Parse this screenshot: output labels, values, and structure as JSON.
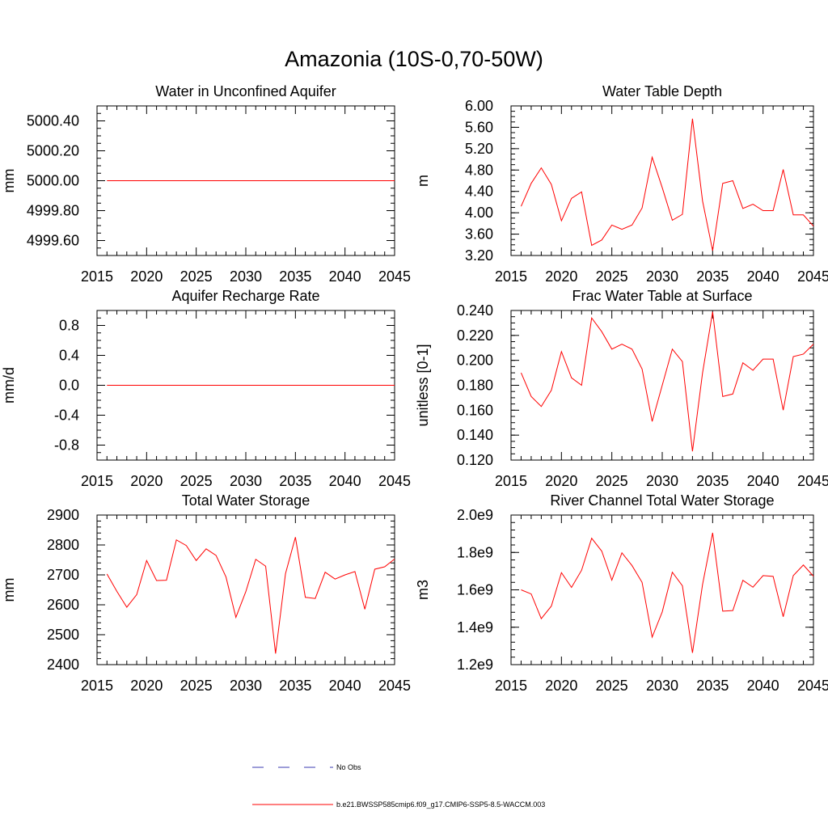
{
  "figure": {
    "title": "Amazonia (10S-0,70-50W)"
  },
  "legend": {
    "entries": [
      {
        "label": "No Obs",
        "color": "#3b3bb0",
        "style": "dashed"
      },
      {
        "label": "b.e21.BWSSP585cmip6.f09_g17.CMIP6-SSP5-8.5-WACCM.003",
        "color": "#ff0000",
        "style": "solid"
      }
    ]
  },
  "chart_data": [
    {
      "type": "line",
      "title": "Water in Unconfined Aquifer",
      "ylabel": "mm",
      "xlim": [
        2015,
        2045
      ],
      "ylim": [
        4999.5,
        5000.5
      ],
      "x_ticks": [
        "2015",
        "2020",
        "2025",
        "2030",
        "2035",
        "2040",
        "2045"
      ],
      "y_ticks": [
        {
          "v": 4999.6,
          "label": "4999.60"
        },
        {
          "v": 4999.8,
          "label": "4999.80"
        },
        {
          "v": 5000.0,
          "label": "5000.00"
        },
        {
          "v": 5000.2,
          "label": "5000.20"
        },
        {
          "v": 5000.4,
          "label": "5000.40"
        }
      ],
      "y_minor_step": 0.05,
      "series": [
        {
          "color": "#ff0000",
          "x": [
            2016,
            2017,
            2018,
            2019,
            2020,
            2021,
            2022,
            2023,
            2024,
            2025,
            2026,
            2027,
            2028,
            2029,
            2030,
            2031,
            2032,
            2033,
            2034,
            2035,
            2036,
            2037,
            2038,
            2039,
            2040,
            2041,
            2042,
            2043,
            2044,
            2045
          ],
          "y": [
            5000,
            5000,
            5000,
            5000,
            5000,
            5000,
            5000,
            5000,
            5000,
            5000,
            5000,
            5000,
            5000,
            5000,
            5000,
            5000,
            5000,
            5000,
            5000,
            5000,
            5000,
            5000,
            5000,
            5000,
            5000,
            5000,
            5000,
            5000,
            5000,
            5000
          ]
        }
      ]
    },
    {
      "type": "line",
      "title": "Water Table Depth",
      "ylabel": "m",
      "xlim": [
        2015,
        2045
      ],
      "ylim": [
        3.2,
        6.0
      ],
      "x_ticks": [
        "2015",
        "2020",
        "2025",
        "2030",
        "2035",
        "2040",
        "2045"
      ],
      "y_ticks": [
        {
          "v": 3.2,
          "label": "3.20"
        },
        {
          "v": 3.6,
          "label": "3.60"
        },
        {
          "v": 4.0,
          "label": "4.00"
        },
        {
          "v": 4.4,
          "label": "4.40"
        },
        {
          "v": 4.8,
          "label": "4.80"
        },
        {
          "v": 5.2,
          "label": "5.20"
        },
        {
          "v": 5.6,
          "label": "5.60"
        },
        {
          "v": 6.0,
          "label": "6.00"
        }
      ],
      "y_minor_step": 0.1,
      "series": [
        {
          "color": "#ff0000",
          "x": [
            2016,
            2017,
            2018,
            2019,
            2020,
            2021,
            2022,
            2023,
            2024,
            2025,
            2026,
            2027,
            2028,
            2029,
            2030,
            2031,
            2032,
            2033,
            2034,
            2035,
            2036,
            2037,
            2038,
            2039,
            2040,
            2041,
            2042,
            2043,
            2044,
            2045
          ],
          "y": [
            4.12,
            4.55,
            4.84,
            4.53,
            3.85,
            4.27,
            4.39,
            3.39,
            3.49,
            3.77,
            3.69,
            3.77,
            4.09,
            5.04,
            4.47,
            3.86,
            3.97,
            5.76,
            4.22,
            3.29,
            4.55,
            4.6,
            4.08,
            4.16,
            4.04,
            4.04,
            4.81,
            3.96,
            3.96,
            3.75
          ]
        }
      ]
    },
    {
      "type": "line",
      "title": "Aquifer Recharge Rate",
      "ylabel": "mm/d",
      "xlim": [
        2015,
        2045
      ],
      "ylim": [
        -1.0,
        1.0
      ],
      "x_ticks": [
        "2015",
        "2020",
        "2025",
        "2030",
        "2035",
        "2040",
        "2045"
      ],
      "y_ticks": [
        {
          "v": -0.8,
          "label": "-0.8"
        },
        {
          "v": -0.4,
          "label": "-0.4"
        },
        {
          "v": 0.0,
          "label": "0.0"
        },
        {
          "v": 0.4,
          "label": "0.4"
        },
        {
          "v": 0.8,
          "label": "0.8"
        }
      ],
      "y_minor_step": 0.1,
      "series": [
        {
          "color": "#ff0000",
          "x": [
            2016,
            2017,
            2018,
            2019,
            2020,
            2021,
            2022,
            2023,
            2024,
            2025,
            2026,
            2027,
            2028,
            2029,
            2030,
            2031,
            2032,
            2033,
            2034,
            2035,
            2036,
            2037,
            2038,
            2039,
            2040,
            2041,
            2042,
            2043,
            2044,
            2045
          ],
          "y": [
            0,
            0,
            0,
            0,
            0,
            0,
            0,
            0,
            0,
            0,
            0,
            0,
            0,
            0,
            0,
            0,
            0,
            0,
            0,
            0,
            0,
            0,
            0,
            0,
            0,
            0,
            0,
            0,
            0,
            0
          ]
        }
      ]
    },
    {
      "type": "line",
      "title": "Frac Water Table at Surface",
      "ylabel": "unitless [0-1]",
      "xlim": [
        2015,
        2045
      ],
      "ylim": [
        0.12,
        0.24
      ],
      "x_ticks": [
        "2015",
        "2020",
        "2025",
        "2030",
        "2035",
        "2040",
        "2045"
      ],
      "y_ticks": [
        {
          "v": 0.12,
          "label": "0.120"
        },
        {
          "v": 0.14,
          "label": "0.140"
        },
        {
          "v": 0.16,
          "label": "0.160"
        },
        {
          "v": 0.18,
          "label": "0.180"
        },
        {
          "v": 0.2,
          "label": "0.200"
        },
        {
          "v": 0.22,
          "label": "0.220"
        },
        {
          "v": 0.24,
          "label": "0.240"
        }
      ],
      "y_minor_step": 0.005,
      "series": [
        {
          "color": "#ff0000",
          "x": [
            2016,
            2017,
            2018,
            2019,
            2020,
            2021,
            2022,
            2023,
            2024,
            2025,
            2026,
            2027,
            2028,
            2029,
            2030,
            2031,
            2032,
            2033,
            2034,
            2035,
            2036,
            2037,
            2038,
            2039,
            2040,
            2041,
            2042,
            2043,
            2044,
            2045
          ],
          "y": [
            0.19,
            0.171,
            0.163,
            0.176,
            0.207,
            0.186,
            0.18,
            0.234,
            0.223,
            0.209,
            0.213,
            0.209,
            0.193,
            0.151,
            0.18,
            0.209,
            0.199,
            0.127,
            0.19,
            0.239,
            0.171,
            0.173,
            0.198,
            0.192,
            0.201,
            0.201,
            0.16,
            0.203,
            0.205,
            0.213
          ]
        }
      ]
    },
    {
      "type": "line",
      "title": "Total Water Storage",
      "ylabel": "mm",
      "xlim": [
        2015,
        2045
      ],
      "ylim": [
        2400,
        2900
      ],
      "x_ticks": [
        "2015",
        "2020",
        "2025",
        "2030",
        "2035",
        "2040",
        "2045"
      ],
      "y_ticks": [
        {
          "v": 2400,
          "label": "2400"
        },
        {
          "v": 2500,
          "label": "2500"
        },
        {
          "v": 2600,
          "label": "2600"
        },
        {
          "v": 2700,
          "label": "2700"
        },
        {
          "v": 2800,
          "label": "2800"
        },
        {
          "v": 2900,
          "label": "2900"
        }
      ],
      "y_minor_step": 20,
      "series": [
        {
          "color": "#ff0000",
          "x": [
            2016,
            2017,
            2018,
            2019,
            2020,
            2021,
            2022,
            2023,
            2024,
            2025,
            2026,
            2027,
            2028,
            2029,
            2030,
            2031,
            2032,
            2033,
            2034,
            2035,
            2036,
            2037,
            2038,
            2039,
            2040,
            2041,
            2042,
            2043,
            2044,
            2045
          ],
          "y": [
            2703,
            2645,
            2592,
            2634,
            2748,
            2681,
            2682,
            2817,
            2798,
            2748,
            2787,
            2765,
            2693,
            2558,
            2644,
            2752,
            2729,
            2437,
            2704,
            2826,
            2625,
            2621,
            2709,
            2686,
            2700,
            2711,
            2585,
            2719,
            2727,
            2753
          ]
        }
      ]
    },
    {
      "type": "line",
      "title": "River Channel Total Water Storage",
      "ylabel": "m3",
      "xlim": [
        2015,
        2045
      ],
      "ylim": [
        1200000000.0,
        2000000000.0
      ],
      "x_ticks": [
        "2015",
        "2020",
        "2025",
        "2030",
        "2035",
        "2040",
        "2045"
      ],
      "y_ticks": [
        {
          "v": 1200000000.0,
          "label": "1.2e9"
        },
        {
          "v": 1400000000.0,
          "label": "1.4e9"
        },
        {
          "v": 1600000000.0,
          "label": "1.6e9"
        },
        {
          "v": 1800000000.0,
          "label": "1.8e9"
        },
        {
          "v": 2000000000.0,
          "label": "2.0e9"
        }
      ],
      "y_minor_step": 40000000.0,
      "series": [
        {
          "color": "#ff0000",
          "x": [
            2016,
            2017,
            2018,
            2019,
            2020,
            2021,
            2022,
            2023,
            2024,
            2025,
            2026,
            2027,
            2028,
            2029,
            2030,
            2031,
            2032,
            2033,
            2034,
            2035,
            2036,
            2037,
            2038,
            2039,
            2040,
            2041,
            2042,
            2043,
            2044,
            2045
          ],
          "y": [
            1600000000.0,
            1578000000.0,
            1446000000.0,
            1513000000.0,
            1692000000.0,
            1613000000.0,
            1705000000.0,
            1876000000.0,
            1807000000.0,
            1652000000.0,
            1798000000.0,
            1730000000.0,
            1640000000.0,
            1347000000.0,
            1482000000.0,
            1694000000.0,
            1622000000.0,
            1263000000.0,
            1629000000.0,
            1905000000.0,
            1486000000.0,
            1489000000.0,
            1651000000.0,
            1614000000.0,
            1676000000.0,
            1672000000.0,
            1456000000.0,
            1676000000.0,
            1733000000.0,
            1673000000.0
          ]
        }
      ]
    }
  ]
}
